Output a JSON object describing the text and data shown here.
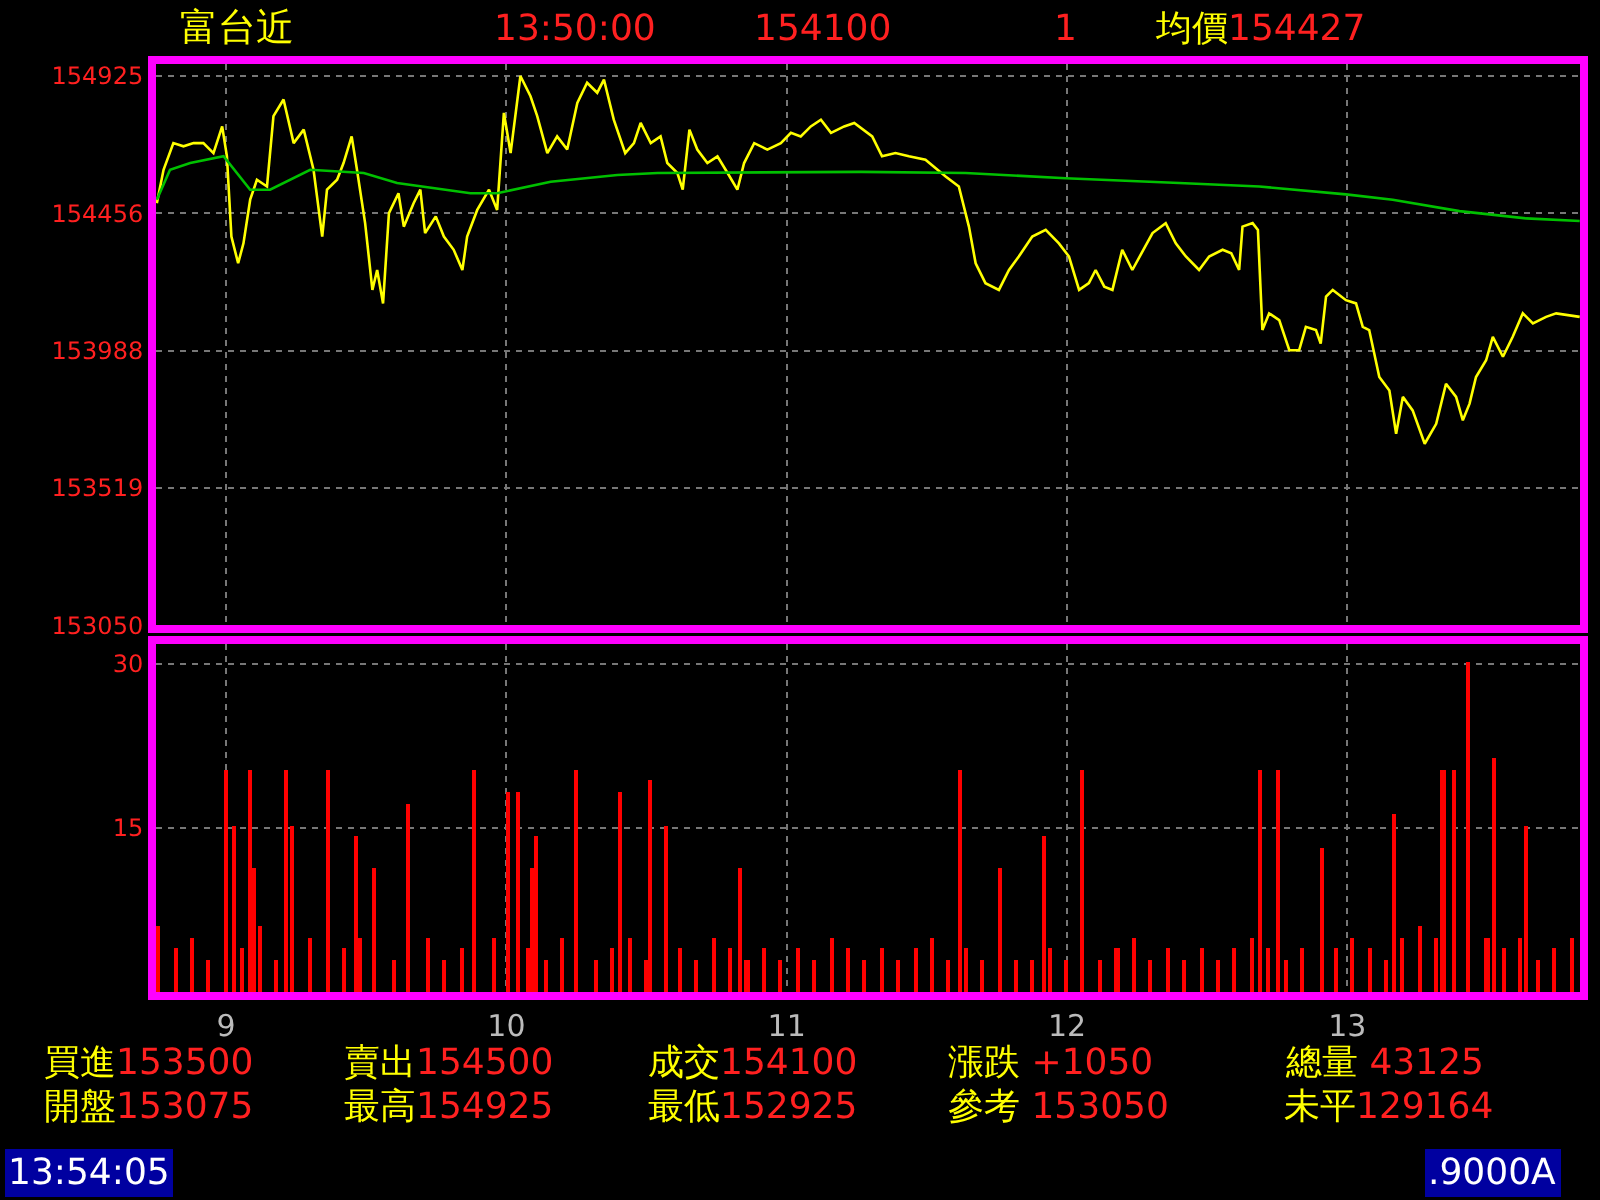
{
  "chart_data": [
    {
      "type": "line",
      "title": "富台近",
      "annotations": [
        "13:50:00",
        "154100",
        "1",
        "均價154427",
        "買進153500",
        "賣出154500",
        "成交154100",
        "漲跌 +1050",
        "總量 43125",
        "開盤153075",
        "最高154925",
        "最低152925",
        "參考 153050",
        "未平129164",
        "13:54:05",
        ".9000A"
      ],
      "series": [
        {
          "color": "#ffff00",
          "x": [
            8.753,
            8.777,
            8.812,
            8.848,
            8.884,
            8.919,
            8.955,
            8.986,
            9.003,
            9.019,
            9.043,
            9.062,
            9.086,
            9.11,
            9.146,
            9.169,
            9.205,
            9.241,
            9.277,
            9.312,
            9.343,
            9.36,
            9.396,
            9.419,
            9.448,
            9.467,
            9.496,
            9.522,
            9.539,
            9.56,
            9.581,
            9.615,
            9.634,
            9.669,
            9.693,
            9.71,
            9.748,
            9.777,
            9.812,
            9.843,
            9.86,
            9.896,
            9.938,
            9.967,
            9.991,
            10.015,
            10.05,
            10.086,
            10.11,
            10.146,
            10.181,
            10.217,
            10.253,
            10.288,
            10.324,
            10.348,
            10.383,
            10.424,
            10.455,
            10.479,
            10.515,
            10.55,
            10.574,
            10.61,
            10.629,
            10.653,
            10.681,
            10.717,
            10.753,
            10.789,
            10.824,
            10.848,
            10.884,
            10.931,
            10.979,
            11.015,
            11.05,
            11.086,
            11.122,
            11.158,
            11.205,
            11.241,
            11.305,
            11.34,
            11.388,
            11.436,
            11.495,
            11.567,
            11.614,
            11.65,
            11.674,
            11.709,
            11.757,
            11.793,
            11.828,
            11.876,
            11.924,
            11.971,
            12.007,
            12.043,
            12.078,
            12.102,
            12.133,
            12.162,
            12.197,
            12.233,
            12.305,
            12.352,
            12.388,
            12.424,
            12.471,
            12.507,
            12.555,
            12.586,
            12.614,
            12.626,
            12.662,
            12.681,
            12.697,
            12.721,
            12.757,
            12.793,
            12.828,
            12.852,
            12.888,
            12.905,
            12.924,
            12.948,
            12.995,
            13.031,
            13.055,
            13.078,
            13.114,
            13.15,
            13.174,
            13.198,
            13.233,
            13.276,
            13.317,
            13.352,
            13.388,
            13.412,
            13.436,
            13.459,
            13.495,
            13.519,
            13.555,
            13.59,
            13.626,
            13.662,
            13.709,
            13.745,
            13.829
          ],
          "values": [
            154491,
            154605,
            154696,
            154685,
            154696,
            154696,
            154662,
            154753,
            154651,
            154377,
            154286,
            154354,
            154503,
            154571,
            154548,
            154788,
            154845,
            154696,
            154742,
            154605,
            154377,
            154537,
            154571,
            154628,
            154719,
            154605,
            154423,
            154195,
            154263,
            154149,
            154457,
            154525,
            154411,
            154491,
            154537,
            154389,
            154446,
            154377,
            154332,
            154263,
            154377,
            154468,
            154537,
            154468,
            154799,
            154662,
            154925,
            154856,
            154788,
            154662,
            154719,
            154674,
            154833,
            154902,
            154868,
            154913,
            154776,
            154662,
            154696,
            154765,
            154696,
            154719,
            154628,
            154594,
            154537,
            154742,
            154674,
            154628,
            154651,
            154594,
            154537,
            154628,
            154696,
            154674,
            154696,
            154731,
            154719,
            154753,
            154776,
            154731,
            154753,
            154765,
            154719,
            154651,
            154662,
            154651,
            154639,
            154582,
            154548,
            154411,
            154286,
            154218,
            154195,
            154263,
            154309,
            154377,
            154400,
            154354,
            154309,
            154195,
            154218,
            154263,
            154206,
            154195,
            154332,
            154263,
            154389,
            154423,
            154354,
            154309,
            154263,
            154309,
            154332,
            154320,
            154263,
            154411,
            154423,
            154400,
            154058,
            154115,
            154092,
            153989,
            153989,
            154069,
            154058,
            154012,
            154172,
            154195,
            154160,
            154149,
            154069,
            154058,
            153898,
            153852,
            153704,
            153830,
            153784,
            153670,
            153738,
            153875,
            153830,
            153750,
            153807,
            153898,
            153955,
            154035,
            153967,
            154035,
            154115,
            154081,
            154103,
            154115,
            154103
          ]
        },
        {
          "color": "#00c000",
          "x": [
            8.753,
            8.8,
            8.872,
            8.991,
            9.086,
            9.157,
            9.3,
            9.491,
            9.61,
            9.872,
            9.967,
            10.158,
            10.396,
            10.539,
            11.265,
            11.638,
            11.995,
            12.4,
            12.686,
            12.995,
            13.162,
            13.4,
            13.638,
            13.829
          ],
          "values": [
            154503,
            154605,
            154628,
            154651,
            154537,
            154537,
            154605,
            154594,
            154560,
            154525,
            154525,
            154564,
            154587,
            154594,
            154598,
            154594,
            154576,
            154560,
            154548,
            154521,
            154503,
            154464,
            154439,
            154430
          ]
        }
      ],
      "xlim": [
        8.75,
        13.83
      ],
      "xticks": [
        {
          "value": 9,
          "label": null
        },
        {
          "value": 10,
          "label": null
        },
        {
          "value": 11,
          "label": null
        },
        {
          "value": 12,
          "label": null
        },
        {
          "value": 13,
          "label": null
        }
      ],
      "ylim": [
        153050,
        154966
      ],
      "yticks": [
        154925,
        154456,
        153988,
        153519,
        153050
      ],
      "tick_labels": "y",
      "grid": true
    },
    {
      "type": "bar",
      "color": "#ff0000",
      "x": [
        8.76,
        8.82,
        8.88,
        8.94,
        9.003,
        9.033,
        9.06,
        9.086,
        9.101,
        9.12,
        9.18,
        9.217,
        9.236,
        9.3,
        9.367,
        9.42,
        9.467,
        9.48,
        9.529,
        9.6,
        9.652,
        9.72,
        9.78,
        9.84,
        9.888,
        9.96,
        10.008,
        10.045,
        10.08,
        10.093,
        10.107,
        10.14,
        10.2,
        10.252,
        10.32,
        10.38,
        10.407,
        10.44,
        10.5,
        10.514,
        10.569,
        10.62,
        10.68,
        10.74,
        10.8,
        10.836,
        10.86,
        10.92,
        10.98,
        11.04,
        11.1,
        11.16,
        11.22,
        11.28,
        11.34,
        11.4,
        11.46,
        11.52,
        11.58,
        11.619,
        11.64,
        11.7,
        11.762,
        11.82,
        11.88,
        11.917,
        11.94,
        12.0,
        12.052,
        12.12,
        12.18,
        12.24,
        12.3,
        12.36,
        12.42,
        12.48,
        12.54,
        12.6,
        12.66,
        12.688,
        12.72,
        12.757,
        12.78,
        12.84,
        12.911,
        12.96,
        13.02,
        13.08,
        13.14,
        13.169,
        13.2,
        13.26,
        13.32,
        13.343,
        13.383,
        13.431,
        13.5,
        13.528,
        13.56,
        13.62,
        13.638,
        13.68,
        13.74,
        13.8
      ],
      "values": [
        6,
        4,
        5,
        3,
        20.2,
        15.2,
        4,
        20.2,
        11.3,
        6,
        3,
        20.2,
        15.2,
        5,
        20.2,
        4,
        14.3,
        5,
        11.3,
        3,
        17.2,
        5,
        3,
        4,
        20.2,
        5,
        18.2,
        18.2,
        4,
        11.3,
        14.3,
        3,
        5,
        20.2,
        3,
        4,
        18.2,
        5,
        3,
        19.3,
        15.2,
        4,
        3,
        5,
        4,
        11.3,
        3,
        4,
        3,
        4,
        3,
        5,
        4,
        3,
        4,
        3,
        4,
        5,
        3,
        20.2,
        4,
        3,
        11.3,
        3,
        3,
        14.3,
        4,
        3,
        20.2,
        3,
        4,
        5,
        3,
        4,
        3,
        4,
        3,
        4,
        5,
        20.2,
        4,
        20.2,
        3,
        4,
        13.2,
        4,
        5,
        4,
        3,
        16.2,
        5,
        6,
        5,
        20.2,
        20.2,
        30.2,
        5,
        21.3,
        4,
        5,
        15.2,
        3,
        4,
        5
      ],
      "xlim": [
        8.75,
        13.83
      ],
      "xticks": [
        9,
        10,
        11,
        12,
        13
      ],
      "ylim": [
        0,
        31.8
      ],
      "yticks": [
        15,
        30
      ],
      "grid": true
    }
  ]
}
